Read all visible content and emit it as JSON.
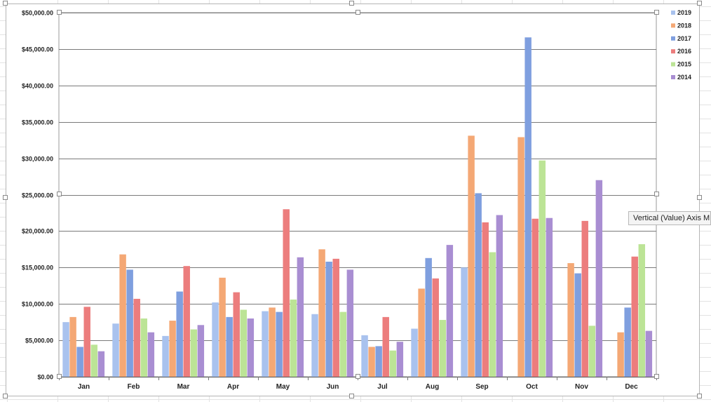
{
  "chart_data": {
    "type": "bar",
    "title": "",
    "xlabel": "",
    "ylabel": "",
    "categories": [
      "Jan",
      "Feb",
      "Mar",
      "Apr",
      "May",
      "Jun",
      "Jul",
      "Aug",
      "Sep",
      "Oct",
      "Nov",
      "Dec"
    ],
    "ylim": [
      0,
      50000
    ],
    "yticks": [
      0,
      5000,
      10000,
      15000,
      20000,
      25000,
      30000,
      35000,
      40000,
      45000,
      50000
    ],
    "ytick_labels": [
      "$0.00",
      "$5,000.00",
      "$10,000.00",
      "$15,000.00",
      "$20,000.00",
      "$25,000.00",
      "$30,000.00",
      "$35,000.00",
      "$40,000.00",
      "$45,000.00",
      "$50,000.00"
    ],
    "grid": true,
    "legend_position": "right",
    "series": [
      {
        "name": "2019",
        "color": "#a9c2ee",
        "values": [
          7500,
          7300,
          5600,
          10200,
          9000,
          8600,
          5700,
          6600,
          15000,
          null,
          null,
          null
        ]
      },
      {
        "name": "2018",
        "color": "#f4a875",
        "values": [
          8200,
          16800,
          7700,
          13600,
          9500,
          17500,
          4100,
          12100,
          33100,
          32900,
          15600,
          6100
        ]
      },
      {
        "name": "2017",
        "color": "#7f9fdf",
        "values": [
          4100,
          14700,
          11700,
          8200,
          8900,
          15800,
          4200,
          16300,
          25200,
          46600,
          14200,
          9500
        ]
      },
      {
        "name": "2016",
        "color": "#ec7d7d",
        "values": [
          9600,
          10700,
          15200,
          11600,
          23000,
          16200,
          8200,
          13500,
          21200,
          21700,
          21400,
          16500
        ]
      },
      {
        "name": "2015",
        "color": "#bce496",
        "values": [
          4400,
          8000,
          6500,
          9200,
          10600,
          8900,
          3600,
          7800,
          17100,
          29700,
          7000,
          18200
        ]
      },
      {
        "name": "2014",
        "color": "#a98ed2",
        "values": [
          3500,
          6100,
          7100,
          8000,
          16400,
          14700,
          4800,
          18100,
          22200,
          21800,
          27000,
          6300
        ]
      }
    ]
  },
  "tooltip": {
    "text": "Vertical (Value) Axis M"
  }
}
